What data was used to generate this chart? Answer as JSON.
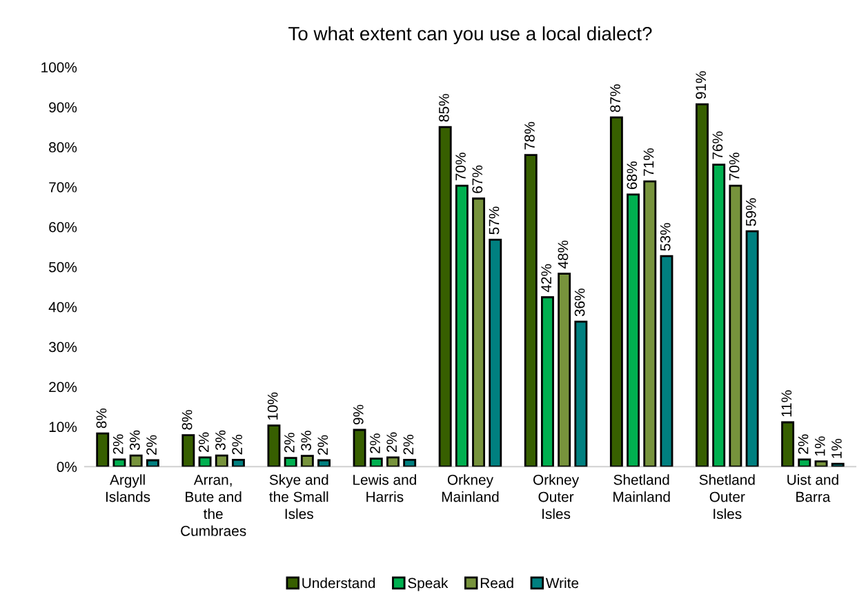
{
  "chart_data": {
    "type": "bar",
    "title": "To what extent can you use a local dialect?",
    "categories": [
      "Argyll\nIslands",
      "Arran,\nBute and\nthe\nCumbraes",
      "Skye and\nthe Small\nIsles",
      "Lewis and\nHarris",
      "Orkney\nMainland",
      "Orkney\nOuter\nIsles",
      "Shetland\nMainland",
      "Shetland\nOuter\nIsles",
      "Uist and\nBarra"
    ],
    "series": [
      {
        "name": "Understand",
        "color": "#375f00",
        "values": [
          8.3,
          7.9,
          10.3,
          9.2,
          85,
          78,
          87.4,
          90.7,
          11.1
        ],
        "value_labels": [
          "8%",
          "8%",
          "10%",
          "9%",
          "85%",
          "78%",
          "87%",
          "91%",
          "11%"
        ]
      },
      {
        "name": "Speak",
        "color": "#00b050",
        "values": [
          1.8,
          2.3,
          2.2,
          2,
          70.3,
          42.4,
          68.1,
          75.6,
          1.8
        ],
        "value_labels": [
          "2%",
          "2%",
          "2%",
          "2%",
          "70%",
          "42%",
          "68%",
          "76%",
          "2%"
        ]
      },
      {
        "name": "Read",
        "color": "#77933c",
        "values": [
          2.8,
          2.8,
          2.7,
          2.3,
          67.1,
          48.3,
          71.4,
          70.3,
          1.3
        ],
        "value_labels": [
          "3%",
          "3%",
          "3%",
          "2%",
          "67%",
          "48%",
          "71%",
          "70%",
          "1%"
        ]
      },
      {
        "name": "Write",
        "color": "#008080",
        "values": [
          1.6,
          1.7,
          1.6,
          1.7,
          56.8,
          36.3,
          52.7,
          58.9,
          0.7
        ],
        "value_labels": [
          "2%",
          "2%",
          "2%",
          "2%",
          "57%",
          "36%",
          "53%",
          "59%",
          "1%"
        ]
      }
    ],
    "ylim": [
      0,
      100
    ],
    "yticks": [
      {
        "value": 0,
        "label": "0%"
      },
      {
        "value": 10,
        "label": "10%"
      },
      {
        "value": 20,
        "label": "20%"
      },
      {
        "value": 30,
        "label": "30%"
      },
      {
        "value": 40,
        "label": "40%"
      },
      {
        "value": 50,
        "label": "50%"
      },
      {
        "value": 60,
        "label": "60%"
      },
      {
        "value": 70,
        "label": "70%"
      },
      {
        "value": 80,
        "label": "80%"
      },
      {
        "value": 90,
        "label": "90%"
      },
      {
        "value": 100,
        "label": "100%"
      }
    ],
    "grid": false,
    "legend": "bottom"
  }
}
